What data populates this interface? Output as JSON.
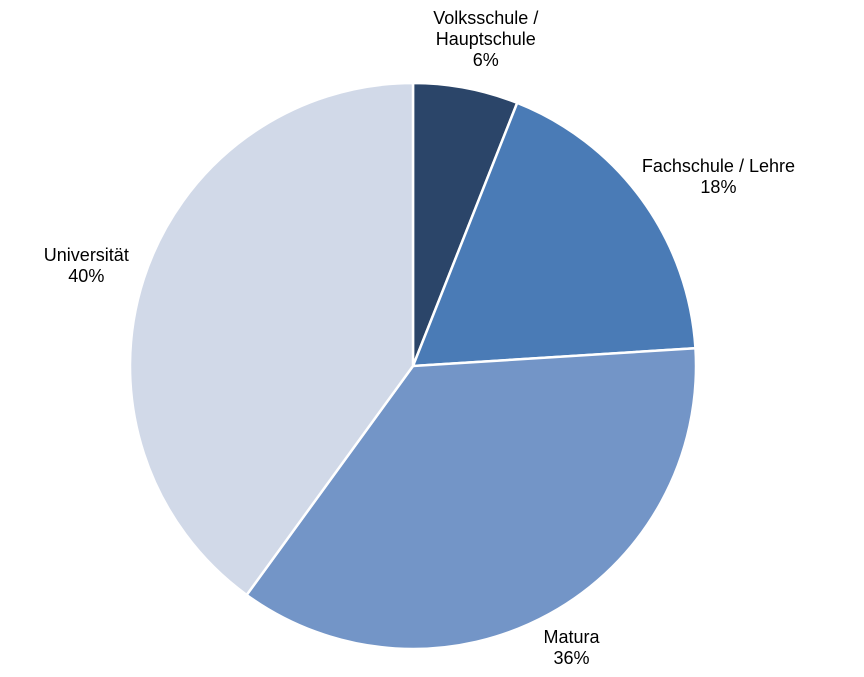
{
  "chart_data": {
    "type": "pie",
    "categories": [
      "Volksschule / Hauptschule",
      "Fachschule / Lehre",
      "Matura",
      "Universität"
    ],
    "values": [
      6,
      18,
      36,
      40
    ],
    "value_labels": [
      "6%",
      "18%",
      "36%",
      "40%"
    ],
    "colors": [
      "#2b4569",
      "#4a7bb6",
      "#7395c7",
      "#d1d9e8"
    ]
  }
}
